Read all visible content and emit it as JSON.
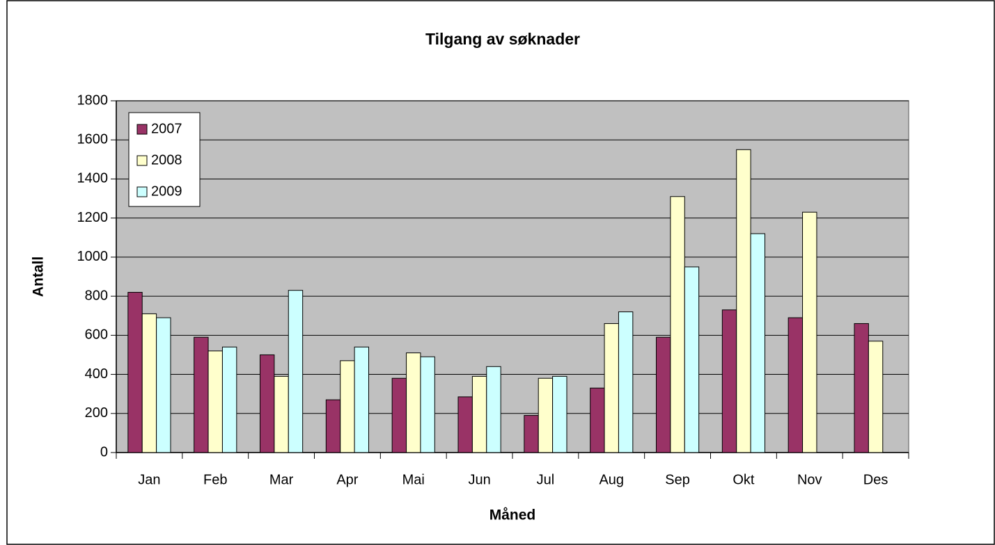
{
  "chart_data": {
    "type": "bar",
    "title": "Tilgang av søknader",
    "x_label": "Måned",
    "y_label": "Antall",
    "categories": [
      "Jan",
      "Feb",
      "Mar",
      "Apr",
      "Mai",
      "Jun",
      "Jul",
      "Aug",
      "Sep",
      "Okt",
      "Nov",
      "Des"
    ],
    "series": [
      {
        "name": "2007",
        "color": "#993366",
        "values": [
          820,
          590,
          500,
          270,
          380,
          285,
          190,
          330,
          590,
          730,
          690,
          660
        ]
      },
      {
        "name": "2008",
        "color": "#ffffcc",
        "values": [
          710,
          520,
          390,
          470,
          510,
          390,
          380,
          660,
          1310,
          1550,
          1230,
          570
        ]
      },
      {
        "name": "2009",
        "color": "#ccffff",
        "values": [
          690,
          540,
          830,
          540,
          490,
          440,
          390,
          720,
          950,
          1120,
          null,
          null
        ]
      }
    ],
    "ylim": [
      0,
      1800
    ],
    "yticks": [
      0,
      200,
      400,
      600,
      800,
      1000,
      1200,
      1400,
      1600,
      1800
    ],
    "grid": true,
    "legend": "top-left"
  }
}
